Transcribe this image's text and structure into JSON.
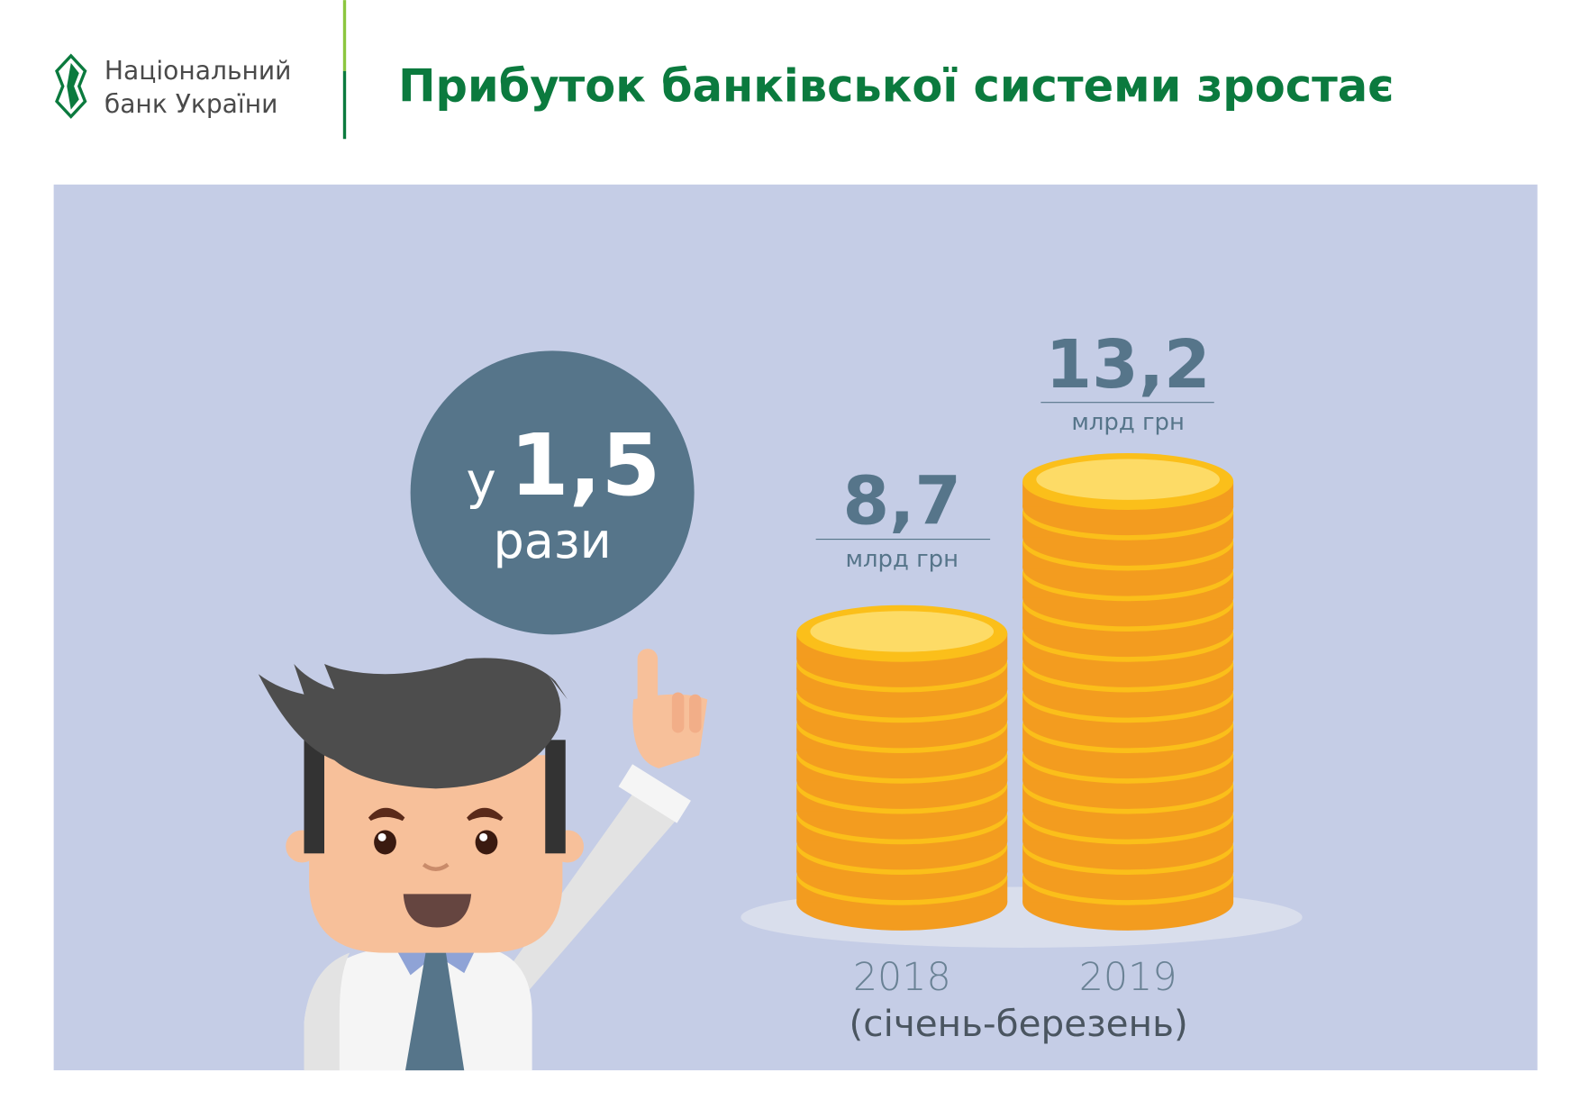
{
  "header": {
    "logo_line1": "Національний",
    "logo_line2": "банк України",
    "title": "Прибуток банківської системи зростає"
  },
  "badge": {
    "prefix": "у",
    "value": "1,5",
    "suffix": "рази"
  },
  "chart_data": {
    "type": "bar",
    "title": "Прибуток банківської системи зростає",
    "categories": [
      "2018",
      "2019"
    ],
    "values": [
      8.7,
      13.2
    ],
    "value_labels": [
      "8,7",
      "13,2"
    ],
    "unit": "млрд грн",
    "period_label": "(січень-березень)",
    "style": "coin stacks"
  },
  "colors": {
    "brand_green": "#0b7a3e",
    "panel": "#c5cde6",
    "accent_slate": "#56758a",
    "coin_body": "#f39c1f",
    "coin_rim": "#fbbf1a",
    "coin_face": "#fddb66"
  }
}
